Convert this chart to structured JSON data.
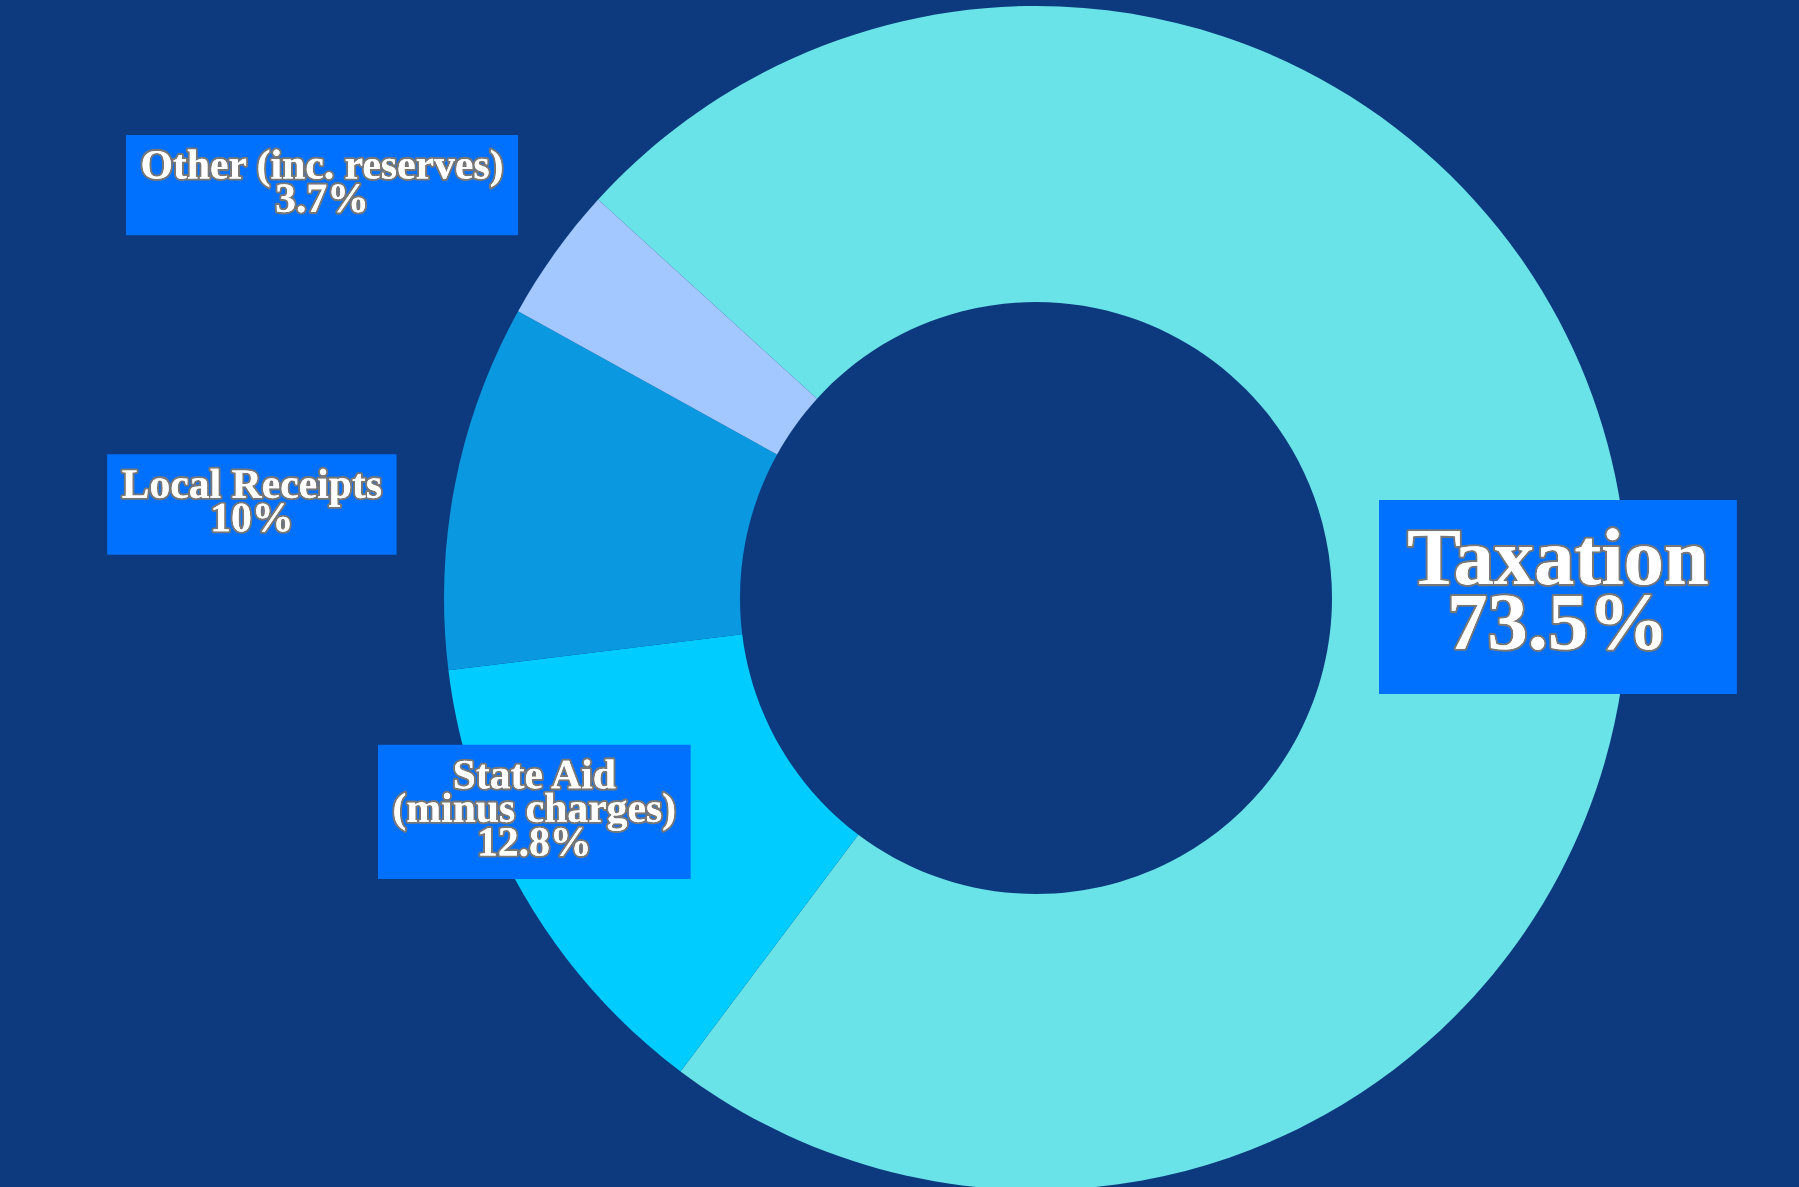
{
  "chart_data": {
    "type": "donut",
    "categories": [
      "Taxation",
      "State Aid\n(minus charges)",
      "Local Receipts",
      "Other (inc. reserves)"
    ],
    "values": [
      73.5,
      12.8,
      10,
      3.7
    ],
    "value_labels": [
      "73.5%",
      "12.8%",
      "10%",
      "3.7%"
    ],
    "colors": [
      "#6ae3e8",
      "#00ccff",
      "#0a98e0",
      "#a3c8ff"
    ],
    "legend": false
  }
}
